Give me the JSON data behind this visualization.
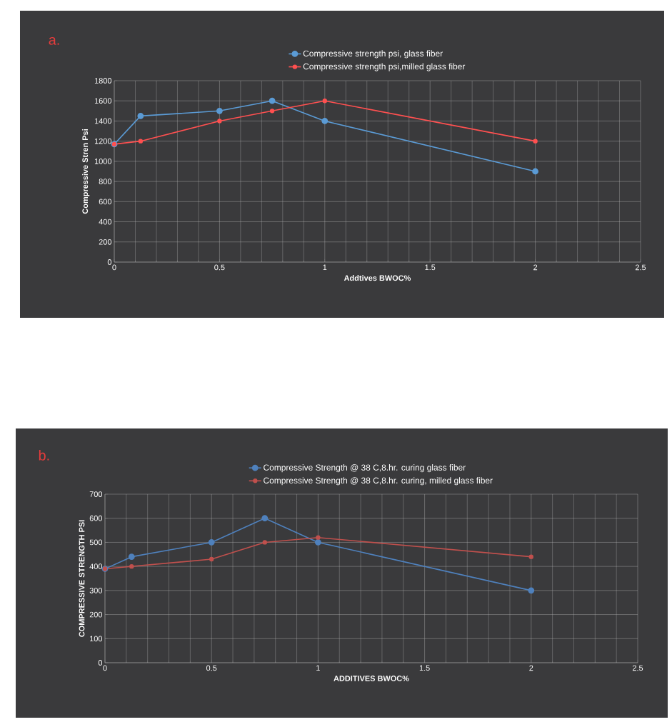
{
  "chart_data": [
    {
      "type": "line",
      "title": "a.",
      "xlabel": "Addtives BWOC%",
      "ylabel": "Compressive Stren Psi",
      "x": [
        0,
        0.125,
        0.5,
        0.75,
        1,
        2
      ],
      "series": [
        {
          "name": "Compressive strength psi, glass fiber",
          "color": "#5b9bd5",
          "values": [
            1170,
            1450,
            1500,
            1600,
            1400,
            900
          ]
        },
        {
          "name": "Compressive strength psi,milled glass fiber",
          "color": "#ff5050",
          "values": [
            1170,
            1200,
            1400,
            1500,
            1600,
            1200
          ]
        }
      ],
      "xlim": [
        0,
        2.5
      ],
      "xticks": [
        0,
        0.5,
        1,
        1.5,
        2,
        2.5
      ],
      "ylim": [
        0,
        1800
      ],
      "yticks": [
        0,
        200,
        400,
        600,
        800,
        1000,
        1200,
        1400,
        1600,
        1800
      ],
      "grid": true,
      "legend": "top",
      "marker": "circle"
    },
    {
      "type": "line",
      "title": "b.",
      "xlabel": "ADDITIVES BWOC%",
      "ylabel": "COMPRESSIVE STRENGTH PSI",
      "x": [
        0,
        0.125,
        0.5,
        0.75,
        1,
        2
      ],
      "series": [
        {
          "name": "Compressive Strength @ 38 C,8.hr. curing glass fiber",
          "color": "#4f81bd",
          "values": [
            390,
            440,
            500,
            600,
            500,
            300
          ]
        },
        {
          "name": "Compressive Strength @ 38 C,8.hr. curing, milled glass fiber",
          "color": "#c0504d",
          "values": [
            390,
            400,
            430,
            500,
            520,
            440
          ]
        }
      ],
      "xlim": [
        0,
        2.5
      ],
      "xticks": [
        0,
        0.5,
        1,
        1.5,
        2,
        2.5
      ],
      "ylim": [
        0,
        700
      ],
      "yticks": [
        0,
        100,
        200,
        300,
        400,
        500,
        600,
        700
      ],
      "grid": true,
      "legend": "top",
      "marker": "circle"
    }
  ]
}
